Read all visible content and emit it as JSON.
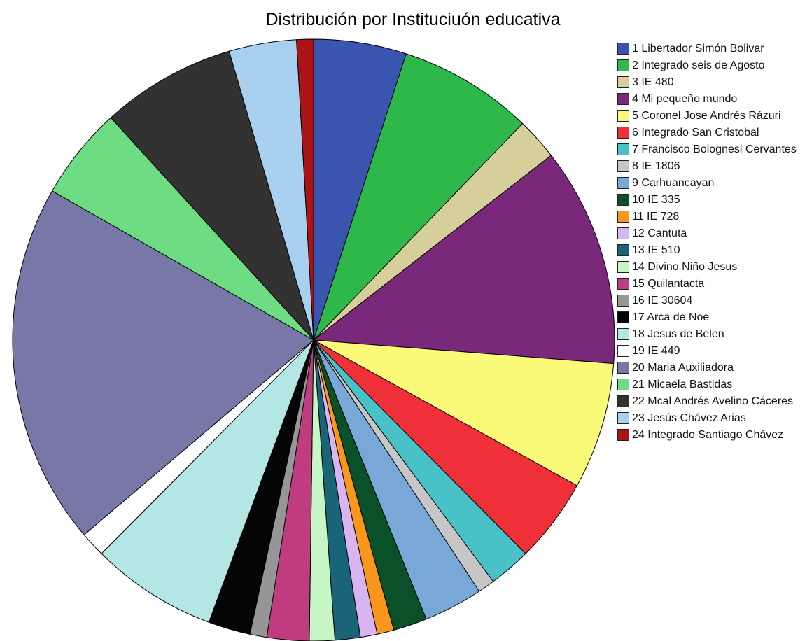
{
  "chart_data": {
    "type": "pie",
    "title": "Distribución por Instituciuón educativa",
    "legend_placement": "right",
    "categories": [
      "1 Libertador Simón Bolivar",
      "2 Integrado seis de Agosto",
      "3 IE 480",
      "4 Mi pequeño mundo",
      "5 Coronel Jose Andrés Rázuri",
      "6 Integrado San Cristobal",
      "7 Francisco Bolognesi Cervantes",
      "8 IE 1806",
      "9 Carhuancayan",
      "10 IE 335",
      "11 IE 728",
      "12 Cantuta",
      "13 IE 510",
      "14 Divino Niño Jesus",
      "15 Quilantacta",
      "16 IE 30604",
      "17 Arca de Noe",
      "18 Jesus de Belen",
      "19 IE 449",
      "20 Maria Auxiliadora",
      "21 Micaela Bastidas",
      "22 Mcal Andrés Avelino Cáceres",
      "23 Jesús Chávez Arias",
      "24 Integrado Santiago Chávez"
    ],
    "values": [
      5.5,
      8.0,
      2.5,
      13.0,
      7.5,
      5.0,
      2.5,
      1.0,
      3.5,
      2.0,
      1.0,
      1.0,
      1.5,
      1.5,
      2.5,
      1.0,
      2.5,
      7.5,
      1.5,
      21.5,
      5.5,
      8.0,
      4.0,
      1.0
    ],
    "colors": [
      "#3a55b0",
      "#2fb84a",
      "#d6cf9a",
      "#7a287a",
      "#fafa78",
      "#f03038",
      "#48c2c6",
      "#c6c6c6",
      "#78a8d8",
      "#0a5028",
      "#f8961e",
      "#d8b4f0",
      "#1a6478",
      "#c6f6c6",
      "#c03c80",
      "#969696",
      "#050505",
      "#b4e6e6",
      "#ffffff",
      "#7878a8",
      "#6edc82",
      "#323232",
      "#aad0f0",
      "#aa1418"
    ]
  }
}
